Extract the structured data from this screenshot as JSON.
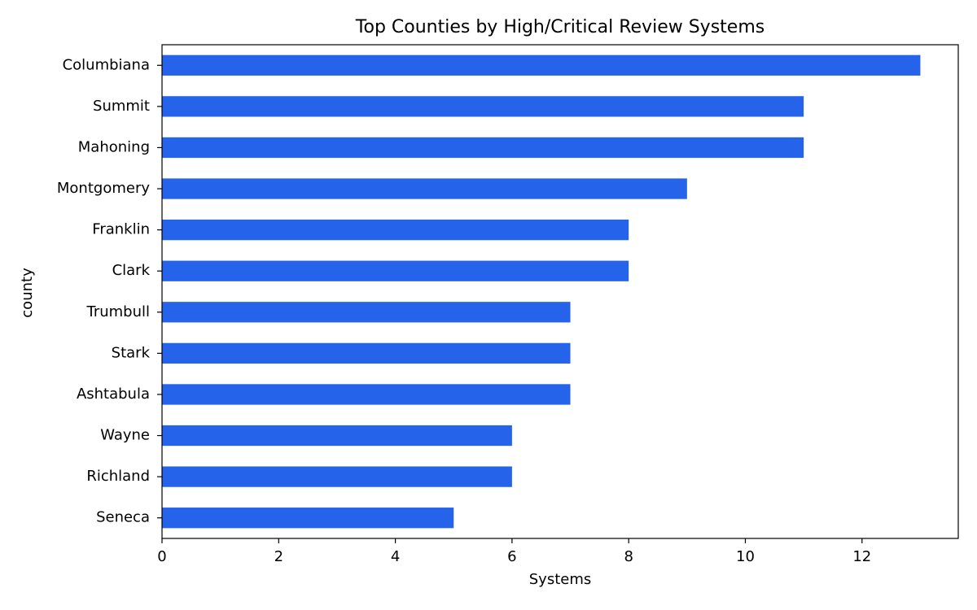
{
  "chart_data": {
    "type": "barh",
    "title": "Top Counties by High/Critical Review Systems",
    "x_label": "Systems",
    "y_label": "county",
    "categories": [
      "Columbiana",
      "Summit",
      "Mahoning",
      "Montgomery",
      "Franklin",
      "Clark",
      "Trumbull",
      "Stark",
      "Ashtabula",
      "Wayne",
      "Richland",
      "Seneca"
    ],
    "values": [
      13,
      11,
      11,
      9,
      8,
      8,
      7,
      7,
      7,
      6,
      6,
      5
    ],
    "color": "#2563eb",
    "xlim": [
      0,
      13.65
    ],
    "xticks": [
      0,
      2,
      4,
      6,
      8,
      10,
      12
    ],
    "grid": false
  }
}
